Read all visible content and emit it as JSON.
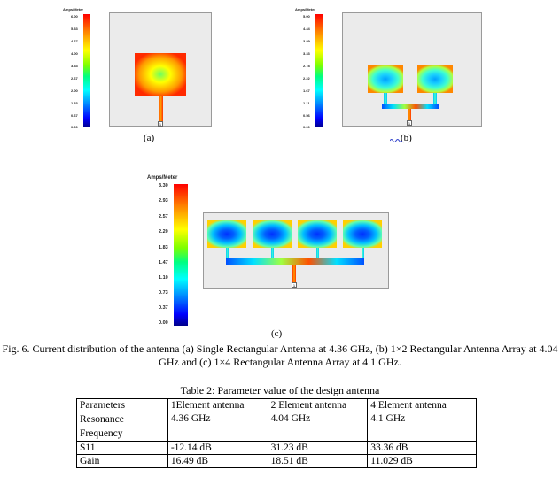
{
  "figure_a": {
    "unit_label": "Amps/Meter",
    "ticks": [
      "6.00",
      "5.33",
      "4.67",
      "4.00",
      "3.33",
      "2.67",
      "2.00",
      "1.33",
      "0.67",
      "0.00"
    ],
    "port_label": "1",
    "sub_label": "(a)"
  },
  "figure_b": {
    "unit_label": "Amps/Meter",
    "ticks": [
      "5.00",
      "4.44",
      "3.89",
      "3.33",
      "2.78",
      "2.22",
      "1.67",
      "1.11",
      "0.56",
      "0.00"
    ],
    "port_label": "1",
    "sub_label": "(b)"
  },
  "figure_c": {
    "unit_label": "Amps/Meter",
    "ticks": [
      "3.30",
      "2.93",
      "2.57",
      "2.20",
      "1.83",
      "1.47",
      "1.10",
      "0.73",
      "0.37",
      "0.00"
    ],
    "port_label": "1",
    "sub_label": "(c)"
  },
  "colorbar_colors": [
    "#ff0000",
    "#ffff00",
    "#00ff80",
    "#00ffff",
    "#0000ff"
  ],
  "caption": "Fig. 6.  Current distribution of the antenna (a) Single Rectangular Antenna at 4.36 GHz, (b) 1×2 Rectangular Antenna Array at 4.04 GHz and (c) 1×4 Rectangular Antenna Array at 4.1 GHz.",
  "table": {
    "title": "Table 2: Parameter value of the design antenna",
    "headers": [
      "Parameters",
      "1Element antenna",
      "2 Element antenna",
      "4 Element antenna"
    ],
    "rows": [
      [
        "Resonance Frequency",
        "4.36 GHz",
        "4.04 GHz",
        "4.1 GHz"
      ],
      [
        "S11",
        "-12.14 dB",
        "31.23 dB",
        "33.36 dB"
      ],
      [
        "Gain",
        "16.49 dB",
        "18.51 dB",
        "11.029 dB"
      ]
    ]
  }
}
